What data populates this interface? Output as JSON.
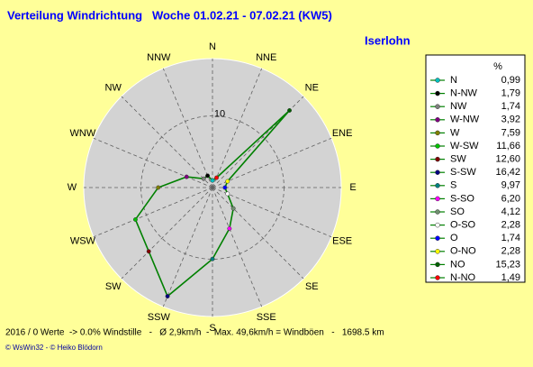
{
  "chart_data": {
    "type": "radar",
    "title": "Verteilung Windrichtung   Woche 01.02.21 - 07.02.21 (KW5)",
    "subtitle": "Iserlohn",
    "directions": [
      "N",
      "NNE",
      "NE",
      "ENE",
      "E",
      "ESE",
      "SE",
      "SSE",
      "S",
      "SSW",
      "SW",
      "WSW",
      "W",
      "WNW",
      "NW",
      "NNW"
    ],
    "legend_title": "%",
    "categories": [
      "N",
      "N-NW",
      "NW",
      "W-NW",
      "W",
      "W-SW",
      "SW",
      "S-SW",
      "S",
      "S-SO",
      "SO",
      "O-SO",
      "O",
      "O-NO",
      "NO",
      "N-NO"
    ],
    "values": [
      0.99,
      1.79,
      1.74,
      3.92,
      7.59,
      11.66,
      12.6,
      16.42,
      9.97,
      6.2,
      4.12,
      2.28,
      1.74,
      2.28,
      15.23,
      1.49
    ],
    "value_labels": [
      "0,99",
      "1,79",
      "1,74",
      "3,92",
      "7,59",
      "11,66",
      "12,60",
      "16,42",
      "9,97",
      "6,20",
      "4,12",
      "2,28",
      "1,74",
      "2,28",
      "15,23",
      "1,49"
    ],
    "colors": [
      "#00c0c0",
      "#000000",
      "#808080",
      "#800080",
      "#808000",
      "#00c000",
      "#800000",
      "#000080",
      "#008080",
      "#ff00ff",
      "#709070",
      "#ffffff",
      "#0000ff",
      "#ffff00",
      "#006000",
      "#ff0000"
    ],
    "line_color": "#008000",
    "rlim": [
      0,
      18
    ],
    "rticks": [
      10
    ],
    "grid": true
  },
  "footer": "2016 / 0 Werte  -> 0.0% Windstille   -   Ø 2,9km/h  -  Max. 49,6km/h = Windböen   -   1698.5 km",
  "credit": "© WsWin32  - © Heiko Blödorn"
}
